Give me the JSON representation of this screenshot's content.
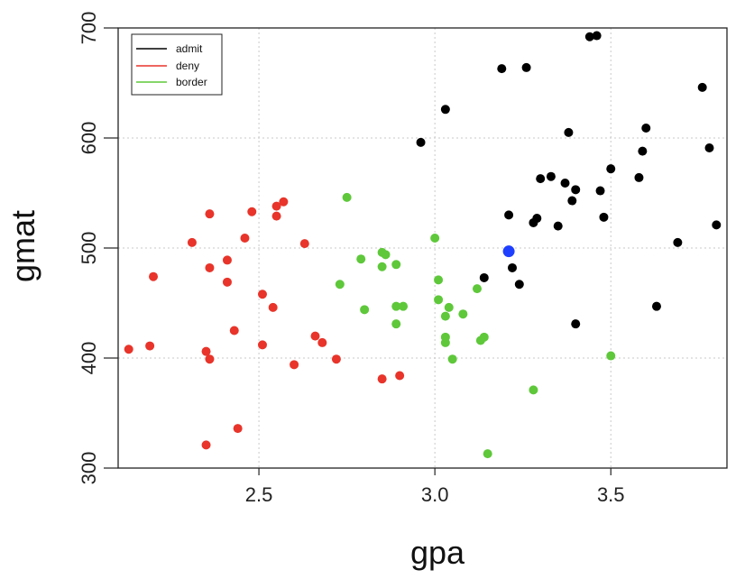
{
  "chart_data": {
    "type": "scatter",
    "xlabel": "gpa",
    "ylabel": "gmat",
    "xlim": [
      2.1,
      3.83
    ],
    "ylim": [
      300,
      700
    ],
    "xticks": [
      2.5,
      3.0,
      3.5
    ],
    "xtick_labels": [
      "2.5",
      "3.0",
      "3.5"
    ],
    "yticks": [
      300,
      400,
      500,
      600,
      700
    ],
    "ytick_labels": [
      "300",
      "400",
      "500",
      "600",
      "700"
    ],
    "grid": true,
    "legend_position": "top-left",
    "series": [
      {
        "name": "admit",
        "color": "#000000",
        "points": [
          [
            3.44,
            692
          ],
          [
            3.46,
            693
          ],
          [
            3.19,
            663
          ],
          [
            3.26,
            664
          ],
          [
            3.76,
            646
          ],
          [
            3.03,
            626
          ],
          [
            2.96,
            596
          ],
          [
            3.38,
            605
          ],
          [
            3.6,
            609
          ],
          [
            3.59,
            588
          ],
          [
            3.78,
            591
          ],
          [
            3.5,
            572
          ],
          [
            3.3,
            563
          ],
          [
            3.33,
            565
          ],
          [
            3.37,
            559
          ],
          [
            3.4,
            553
          ],
          [
            3.47,
            552
          ],
          [
            3.58,
            564
          ],
          [
            3.39,
            543
          ],
          [
            3.21,
            530
          ],
          [
            3.48,
            528
          ],
          [
            3.29,
            527
          ],
          [
            3.28,
            523
          ],
          [
            3.35,
            520
          ],
          [
            3.8,
            521
          ],
          [
            3.69,
            505
          ],
          [
            3.22,
            482
          ],
          [
            3.14,
            473
          ],
          [
            3.24,
            467
          ],
          [
            3.63,
            447
          ],
          [
            3.4,
            431
          ]
        ]
      },
      {
        "name": "deny",
        "color": "#e8342a",
        "points": [
          [
            2.57,
            542
          ],
          [
            2.55,
            538
          ],
          [
            2.36,
            531
          ],
          [
            2.48,
            533
          ],
          [
            2.55,
            529
          ],
          [
            2.46,
            509
          ],
          [
            2.31,
            505
          ],
          [
            2.63,
            504
          ],
          [
            2.41,
            489
          ],
          [
            2.36,
            482
          ],
          [
            2.2,
            474
          ],
          [
            2.41,
            469
          ],
          [
            2.51,
            458
          ],
          [
            2.54,
            446
          ],
          [
            2.43,
            425
          ],
          [
            2.66,
            420
          ],
          [
            2.68,
            414
          ],
          [
            2.51,
            412
          ],
          [
            2.19,
            411
          ],
          [
            2.13,
            408
          ],
          [
            2.35,
            406
          ],
          [
            2.36,
            399
          ],
          [
            2.72,
            399
          ],
          [
            2.6,
            394
          ],
          [
            2.9,
            384
          ],
          [
            2.85,
            381
          ],
          [
            2.44,
            336
          ],
          [
            2.35,
            321
          ]
        ]
      },
      {
        "name": "border",
        "color": "#5ec83a",
        "points": [
          [
            2.75,
            546
          ],
          [
            3.0,
            509
          ],
          [
            2.85,
            496
          ],
          [
            2.86,
            494
          ],
          [
            2.79,
            490
          ],
          [
            2.89,
            485
          ],
          [
            2.85,
            483
          ],
          [
            3.01,
            471
          ],
          [
            2.73,
            467
          ],
          [
            3.12,
            463
          ],
          [
            3.01,
            453
          ],
          [
            2.89,
            447
          ],
          [
            2.91,
            447
          ],
          [
            3.04,
            446
          ],
          [
            2.8,
            444
          ],
          [
            3.08,
            440
          ],
          [
            3.03,
            438
          ],
          [
            2.89,
            431
          ],
          [
            3.14,
            419
          ],
          [
            3.03,
            419
          ],
          [
            3.13,
            416
          ],
          [
            3.03,
            414
          ],
          [
            3.5,
            402
          ],
          [
            3.05,
            399
          ],
          [
            3.28,
            371
          ],
          [
            3.15,
            313
          ]
        ]
      },
      {
        "name": "",
        "color": "#1f3fff",
        "points": [
          [
            3.21,
            497
          ]
        ]
      }
    ]
  }
}
